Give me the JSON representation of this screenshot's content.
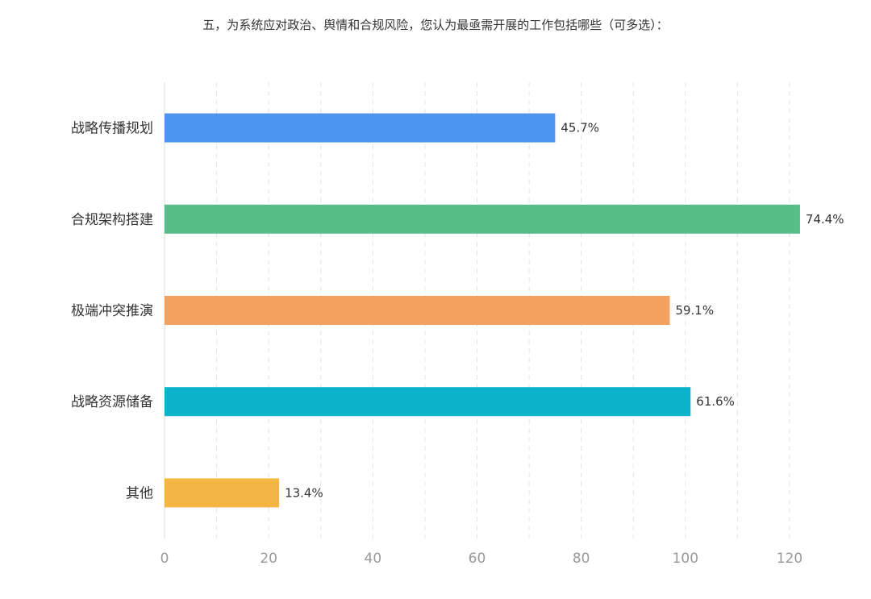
{
  "chart_data": {
    "type": "bar",
    "orientation": "horizontal",
    "title": "五，为系统应对政治、舆情和合规风险，您认为最亟需开展的工作包括哪些（可多选）：",
    "categories": [
      "战略传播规划",
      "合规架构搭建",
      "极端冲突推演",
      "战略资源储备",
      "其他"
    ],
    "values": [
      75,
      122,
      97,
      101,
      22
    ],
    "data_labels": [
      "45.7%",
      "74.4%",
      "59.1%",
      "61.6%",
      "13.4%"
    ],
    "colors": [
      "#4e95f0",
      "#55be8a",
      "#f5a05c",
      "#0bb4cc",
      "#f5b544"
    ],
    "xlim": [
      0,
      122
    ],
    "xticks": [
      "0",
      "20",
      "40",
      "60",
      "80",
      "100",
      "120"
    ],
    "xlabel": "",
    "ylabel": "",
    "grid": "vertical dashed",
    "legend": "none"
  }
}
